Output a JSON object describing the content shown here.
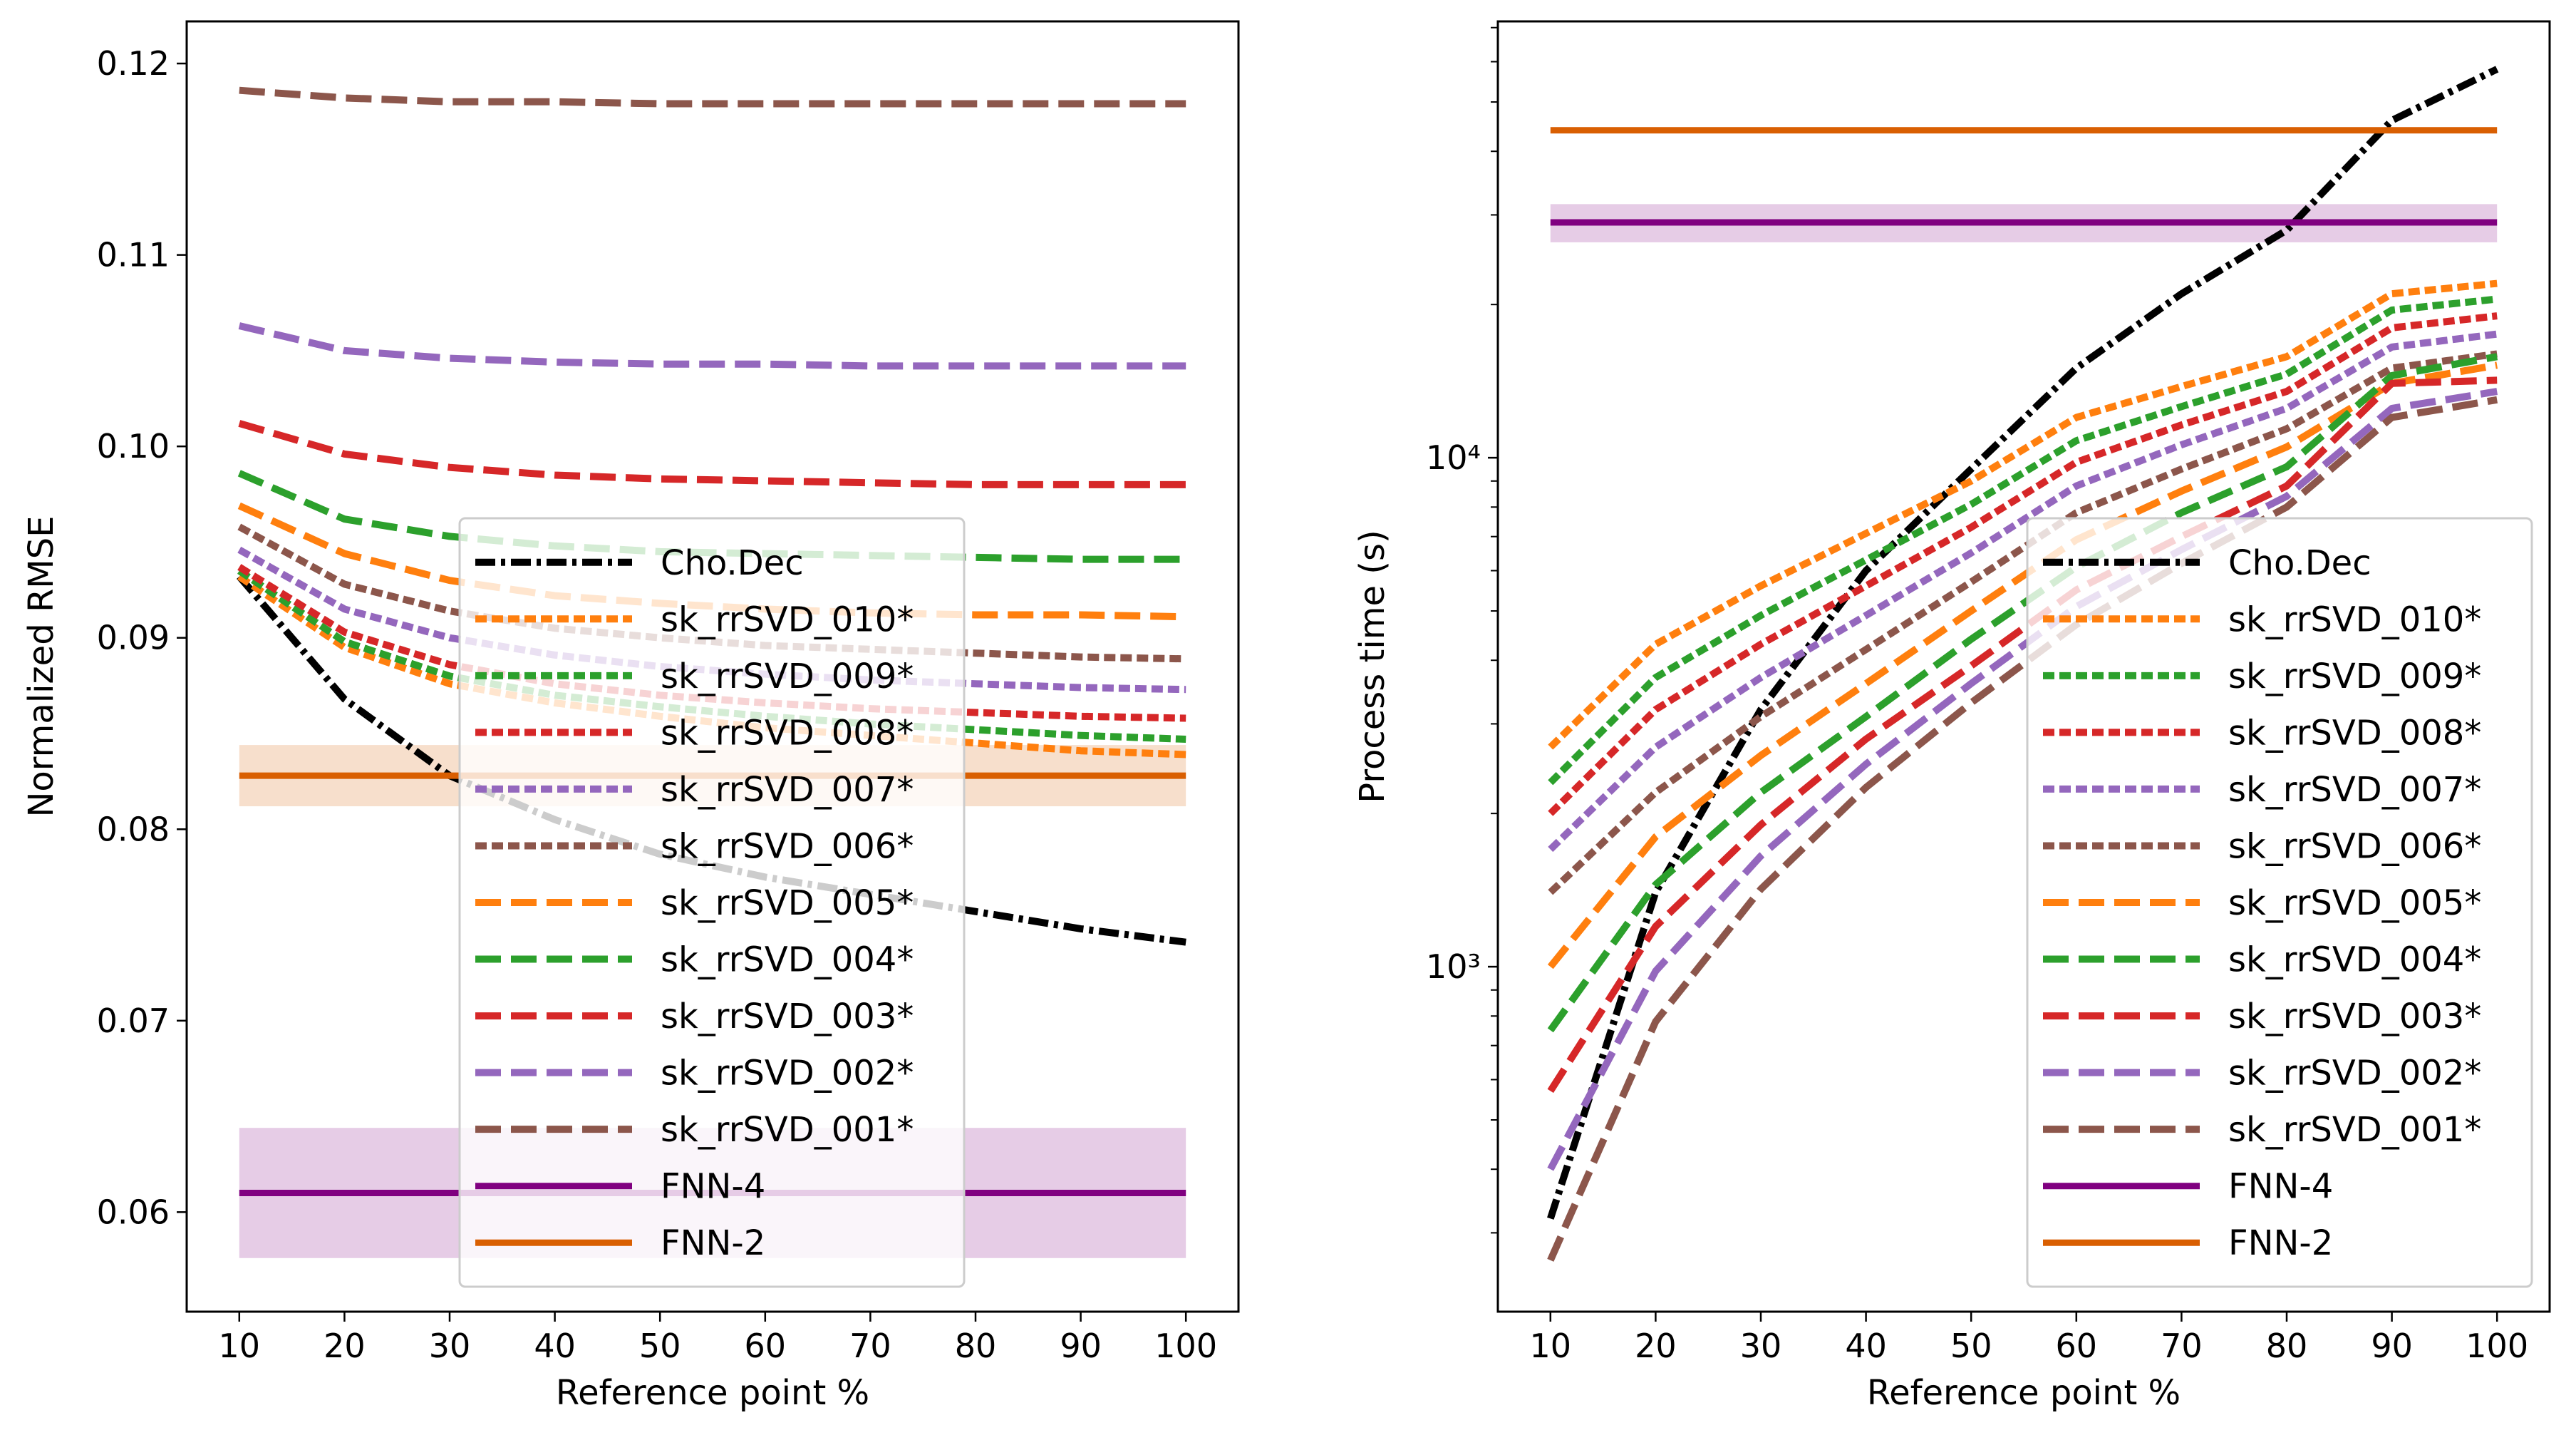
{
  "chart_data": [
    {
      "type": "line",
      "xlabel": "Reference point %",
      "ylabel": "Normalized RMSE",
      "yscale": "linear",
      "xlim": [
        5,
        105
      ],
      "ylim": [
        0.0548,
        0.1222
      ],
      "x": [
        10,
        20,
        30,
        40,
        50,
        60,
        70,
        80,
        90,
        100
      ],
      "xticks": [
        10,
        20,
        30,
        40,
        50,
        60,
        70,
        80,
        90,
        100
      ],
      "yticks": [
        0.06,
        0.07,
        0.08,
        0.09,
        0.1,
        0.11,
        0.12
      ],
      "ytick_labels": [
        "0.06",
        "0.07",
        "0.08",
        "0.09",
        "0.10",
        "0.11",
        "0.12"
      ],
      "legend_position": "lower center",
      "series": [
        {
          "name": "Cho.Dec",
          "style": "dashdot",
          "color": "#000000",
          "values": [
            0.0932,
            0.0868,
            0.0828,
            0.0805,
            0.0787,
            0.0775,
            0.0766,
            0.0757,
            0.0748,
            0.0741
          ]
        },
        {
          "name": "sk_rrSVD_010*",
          "style": "dotted",
          "color": "#ff7f0e",
          "values": [
            0.0932,
            0.0895,
            0.0876,
            0.0866,
            0.0859,
            0.0853,
            0.0849,
            0.0845,
            0.0841,
            0.0839
          ]
        },
        {
          "name": "sk_rrSVD_009*",
          "style": "dotted",
          "color": "#2ca02c",
          "values": [
            0.0935,
            0.0898,
            0.088,
            0.087,
            0.0864,
            0.0859,
            0.0855,
            0.0852,
            0.0849,
            0.0847
          ]
        },
        {
          "name": "sk_rrSVD_008*",
          "style": "dotted",
          "color": "#d62728",
          "values": [
            0.0937,
            0.0903,
            0.0886,
            0.0876,
            0.087,
            0.0866,
            0.0863,
            0.0861,
            0.0859,
            0.0858
          ]
        },
        {
          "name": "sk_rrSVD_007*",
          "style": "dotted",
          "color": "#9467bd",
          "values": [
            0.0946,
            0.0915,
            0.09,
            0.0891,
            0.0885,
            0.0881,
            0.0878,
            0.0876,
            0.0874,
            0.0873
          ]
        },
        {
          "name": "sk_rrSVD_006*",
          "style": "dotted",
          "color": "#8c564b",
          "values": [
            0.0958,
            0.0928,
            0.0914,
            0.0905,
            0.09,
            0.0896,
            0.0894,
            0.0892,
            0.089,
            0.0889
          ]
        },
        {
          "name": "sk_rrSVD_005*",
          "style": "dashed",
          "color": "#ff7f0e",
          "values": [
            0.0969,
            0.0944,
            0.093,
            0.0922,
            0.0918,
            0.0915,
            0.0913,
            0.0912,
            0.0912,
            0.0911
          ]
        },
        {
          "name": "sk_rrSVD_004*",
          "style": "dashed",
          "color": "#2ca02c",
          "values": [
            0.0986,
            0.0962,
            0.0953,
            0.0948,
            0.0945,
            0.0944,
            0.0943,
            0.0942,
            0.0941,
            0.0941
          ]
        },
        {
          "name": "sk_rrSVD_003*",
          "style": "dashed",
          "color": "#d62728",
          "values": [
            0.1012,
            0.0996,
            0.0989,
            0.0985,
            0.0983,
            0.0982,
            0.0981,
            0.098,
            0.098,
            0.098
          ]
        },
        {
          "name": "sk_rrSVD_002*",
          "style": "dashed",
          "color": "#9467bd",
          "values": [
            0.1063,
            0.105,
            0.1046,
            0.1044,
            0.1043,
            0.1043,
            0.1042,
            0.1042,
            0.1042,
            0.1042
          ]
        },
        {
          "name": "sk_rrSVD_001*",
          "style": "dashed",
          "color": "#8c564b",
          "values": [
            0.1186,
            0.1182,
            0.118,
            0.118,
            0.1179,
            0.1179,
            0.1179,
            0.1179,
            0.1179,
            0.1179
          ]
        },
        {
          "name": "FNN-4",
          "style": "solid",
          "color": "#800080",
          "values": [
            0.061,
            0.061,
            0.061,
            0.061,
            0.061,
            0.061,
            0.061,
            0.061,
            0.061,
            0.061
          ],
          "band": [
            0.0576,
            0.0644
          ]
        },
        {
          "name": "FNN-2",
          "style": "solid",
          "color": "#d95f02",
          "values": [
            0.0828,
            0.0828,
            0.0828,
            0.0828,
            0.0828,
            0.0828,
            0.0828,
            0.0828,
            0.0828,
            0.0828
          ],
          "band": [
            0.0812,
            0.0844
          ]
        }
      ]
    },
    {
      "type": "line",
      "xlabel": "Reference point %",
      "ylabel": "Process time (s)",
      "yscale": "log",
      "xlim": [
        5,
        105
      ],
      "ylim": [
        210,
        72000
      ],
      "x": [
        10,
        20,
        30,
        40,
        50,
        60,
        70,
        80,
        90,
        100
      ],
      "xticks": [
        10,
        20,
        30,
        40,
        50,
        60,
        70,
        80,
        90,
        100
      ],
      "yticks": [
        1000,
        10000
      ],
      "ytick_labels": [
        "10³",
        "10⁴"
      ],
      "legend_position": "lower right",
      "series": [
        {
          "name": "Cho.Dec",
          "style": "dashdot",
          "color": "#000000",
          "values": [
            320,
            1400,
            3200,
            6000,
            9500,
            15000,
            21000,
            28000,
            46000,
            58000
          ]
        },
        {
          "name": "sk_rrSVD_010*",
          "style": "dotted",
          "color": "#ff7f0e",
          "values": [
            2700,
            4300,
            5600,
            7100,
            9000,
            12000,
            13800,
            15800,
            21000,
            22000
          ]
        },
        {
          "name": "sk_rrSVD_009*",
          "style": "dotted",
          "color": "#2ca02c",
          "values": [
            2300,
            3700,
            4900,
            6300,
            8100,
            10800,
            12600,
            14600,
            19500,
            20500
          ]
        },
        {
          "name": "sk_rrSVD_008*",
          "style": "dotted",
          "color": "#d62728",
          "values": [
            2000,
            3200,
            4300,
            5600,
            7300,
            9800,
            11600,
            13500,
            18000,
            19000
          ]
        },
        {
          "name": "sk_rrSVD_007*",
          "style": "dotted",
          "color": "#9467bd",
          "values": [
            1700,
            2700,
            3700,
            4900,
            6500,
            8800,
            10600,
            12500,
            16500,
            17500
          ]
        },
        {
          "name": "sk_rrSVD_006*",
          "style": "dotted",
          "color": "#8c564b",
          "values": [
            1400,
            2200,
            3100,
            4200,
            5700,
            7800,
            9500,
            11400,
            15000,
            16000
          ]
        },
        {
          "name": "sk_rrSVD_005*",
          "style": "dashed",
          "color": "#ff7f0e",
          "values": [
            1000,
            1800,
            2600,
            3600,
            5000,
            6900,
            8600,
            10500,
            14000,
            15200
          ]
        },
        {
          "name": "sk_rrSVD_004*",
          "style": "dashed",
          "color": "#2ca02c",
          "values": [
            750,
            1450,
            2200,
            3100,
            4400,
            6100,
            7800,
            9600,
            14500,
            15800
          ]
        },
        {
          "name": "sk_rrSVD_003*",
          "style": "dashed",
          "color": "#d62728",
          "values": [
            570,
            1200,
            1900,
            2800,
            3900,
            5500,
            7000,
            8800,
            14000,
            14200
          ]
        },
        {
          "name": "sk_rrSVD_002*",
          "style": "dashed",
          "color": "#9467bd",
          "values": [
            400,
            980,
            1650,
            2500,
            3600,
            5100,
            6600,
            8400,
            12500,
            13500
          ]
        },
        {
          "name": "sk_rrSVD_001*",
          "style": "dashed",
          "color": "#8c564b",
          "values": [
            265,
            780,
            1420,
            2250,
            3300,
            4700,
            6200,
            8000,
            12000,
            13000
          ]
        },
        {
          "name": "FNN-4",
          "style": "solid",
          "color": "#800080",
          "values": [
            29000,
            29000,
            29000,
            29000,
            29000,
            29000,
            29000,
            29000,
            29000,
            29000
          ],
          "band": [
            26500,
            31500
          ]
        },
        {
          "name": "FNN-2",
          "style": "solid",
          "color": "#d95f02",
          "values": [
            44000,
            44000,
            44000,
            44000,
            44000,
            44000,
            44000,
            44000,
            44000,
            44000
          ]
        }
      ]
    }
  ]
}
